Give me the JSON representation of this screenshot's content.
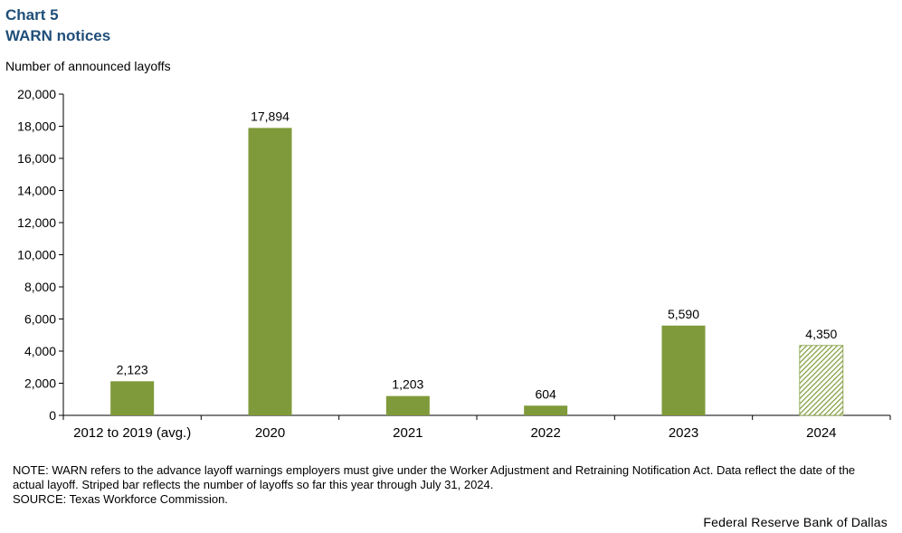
{
  "header": {
    "chart_number": "Chart 5",
    "title": "WARN notices",
    "y_axis_title": "Number of announced layoffs"
  },
  "chart_data": {
    "type": "bar",
    "title": "WARN notices",
    "xlabel": "",
    "ylabel": "Number of announced layoffs",
    "categories": [
      "2012 to 2019 (avg.)",
      "2020",
      "2021",
      "2022",
      "2023",
      "2024"
    ],
    "values": [
      2123,
      17894,
      1203,
      604,
      5590,
      4350
    ],
    "data_labels": [
      "2,123",
      "17,894",
      "1,203",
      "604",
      "5,590",
      "4,350"
    ],
    "striped": [
      false,
      false,
      false,
      false,
      false,
      true
    ],
    "ylim": [
      0,
      20000
    ],
    "yticks": [
      0,
      2000,
      4000,
      6000,
      8000,
      10000,
      12000,
      14000,
      16000,
      18000,
      20000
    ],
    "ytick_labels": [
      "0",
      "2,000",
      "4,000",
      "6,000",
      "8,000",
      "10,000",
      "12,000",
      "14,000",
      "16,000",
      "18,000",
      "20,000"
    ],
    "grid": false,
    "bar_color": "#7f9a3a"
  },
  "footer": {
    "note": "NOTE: WARN refers to the advance layoff warnings employers must give under the Worker Adjustment and Retraining Notification Act. Data reflect the date of the actual layoff. Striped bar reflects the number of layoffs so far this year through July 31, 2024.",
    "source": "SOURCE: Texas Workforce Commission.",
    "credit": "Federal Reserve Bank of Dallas"
  }
}
